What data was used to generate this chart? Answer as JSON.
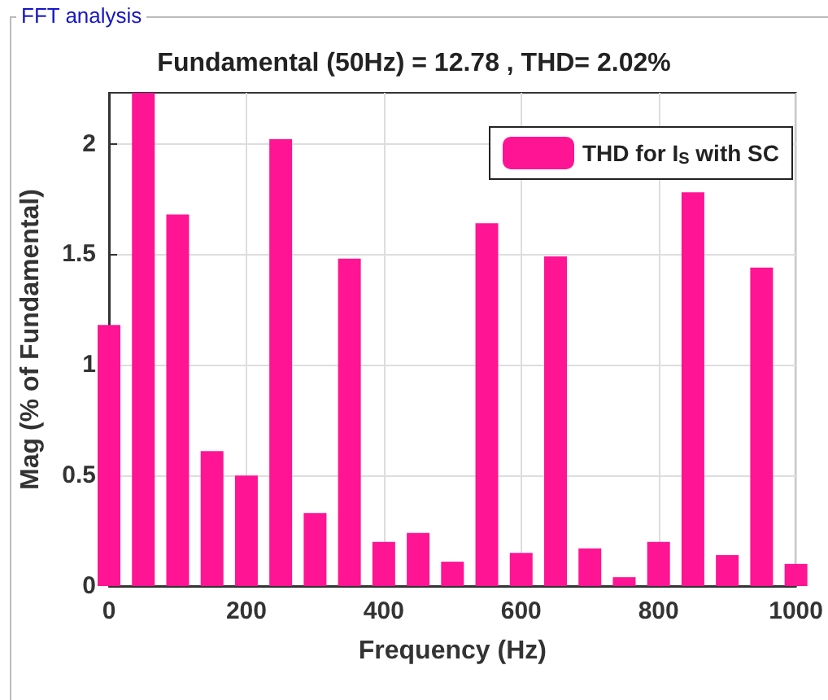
{
  "chart_data": {
    "type": "bar",
    "title": "Fundamental (50Hz) = 12.78 , THD= 2.02%",
    "annotations": [
      "FFT analysis"
    ],
    "xlabel": "Frequency (Hz)",
    "ylabel": "Mag (% of Fundamental)",
    "x": [
      0,
      50,
      100,
      150,
      200,
      250,
      300,
      350,
      400,
      450,
      500,
      550,
      600,
      650,
      700,
      750,
      800,
      850,
      900,
      950,
      1000
    ],
    "series": [
      {
        "name": "THD for I$_{S}$ with SC",
        "color": "#ff1493",
        "values": [
          1.18,
          2.23,
          1.68,
          0.61,
          0.5,
          2.02,
          0.33,
          1.48,
          0.2,
          0.24,
          0.11,
          1.64,
          0.15,
          1.49,
          0.17,
          0.04,
          0.2,
          1.78,
          0.14,
          1.44,
          0.1
        ]
      }
    ],
    "xlim": [
      0,
      1000
    ],
    "xticks": [
      0,
      200,
      400,
      600,
      800,
      1000
    ],
    "ylim": [
      0,
      2.23
    ],
    "yticks": [
      0,
      0.5,
      1,
      1.5,
      2
    ],
    "grid": true,
    "legend": "top right"
  }
}
